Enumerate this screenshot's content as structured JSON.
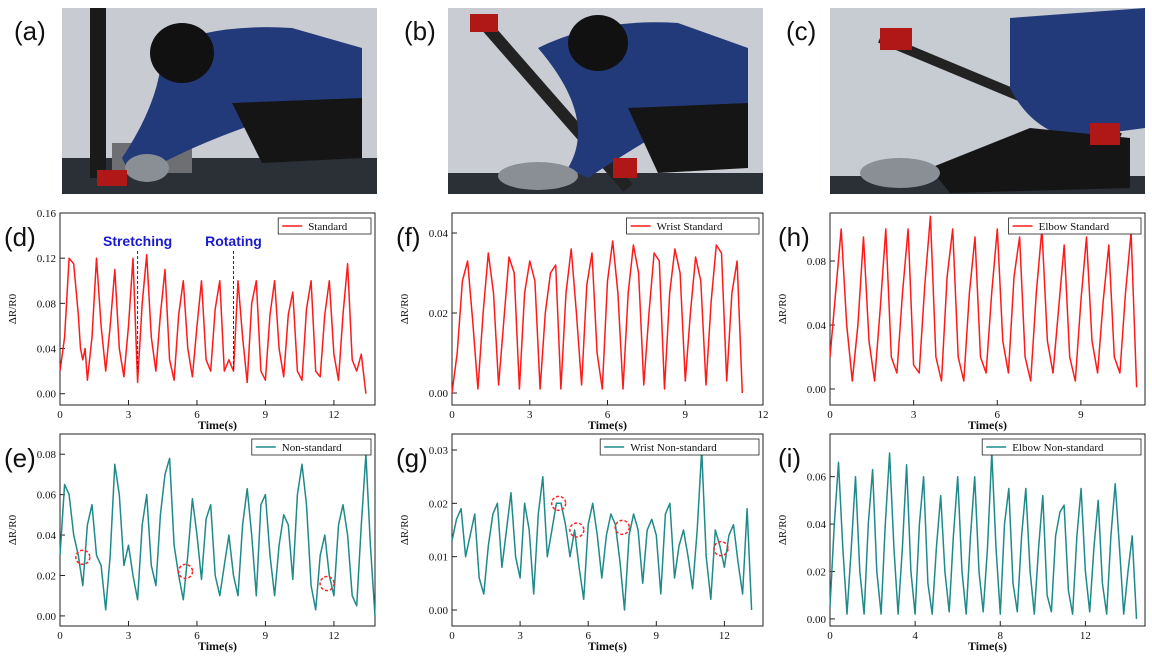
{
  "panel_labels": [
    "(a)",
    "(b)",
    "(c)",
    "(d)",
    "(e)",
    "(f)",
    "(g)",
    "(h)",
    "(i)"
  ],
  "colors": {
    "standard": "#ff1a1a",
    "nonstandard": "#1f8a8a",
    "annotation": "#1a1acc",
    "circle": "#ff2222"
  },
  "chart_data": [
    {
      "id": "d",
      "type": "line",
      "legend": "Standard",
      "color": "#ff1a1a",
      "xlabel": "Time(s)",
      "ylabel": "ΔR/R0",
      "xlim": [
        0,
        13.8
      ],
      "ylim": [
        -0.01,
        0.16
      ],
      "xticks": [
        "0",
        "3",
        "6",
        "9",
        "12"
      ],
      "xtick_values": [
        0,
        3,
        6,
        9,
        12
      ],
      "yticks": [
        "0.00",
        "0.04",
        "0.08",
        "0.12",
        "0.16"
      ],
      "ytick_values": [
        0,
        0.04,
        0.08,
        0.12,
        0.16
      ],
      "annotations": [
        {
          "text": "Stretching",
          "x": 3.4
        },
        {
          "text": "Rotating",
          "x": 7.6
        }
      ],
      "x": [
        0,
        0.2,
        0.4,
        0.6,
        0.8,
        0.9,
        1.0,
        1.1,
        1.2,
        1.4,
        1.6,
        1.8,
        2.0,
        2.2,
        2.4,
        2.6,
        2.8,
        3.0,
        3.2,
        3.4,
        3.6,
        3.8,
        4.0,
        4.2,
        4.4,
        4.6,
        4.8,
        5.0,
        5.2,
        5.4,
        5.6,
        5.8,
        6.0,
        6.2,
        6.4,
        6.6,
        6.8,
        7.0,
        7.2,
        7.4,
        7.6,
        7.8,
        8.0,
        8.2,
        8.4,
        8.6,
        8.8,
        9.0,
        9.2,
        9.4,
        9.6,
        9.8,
        10.0,
        10.2,
        10.4,
        10.6,
        10.8,
        11.0,
        11.2,
        11.4,
        11.6,
        11.8,
        12.0,
        12.2,
        12.4,
        12.6,
        12.8,
        13.0,
        13.2,
        13.4
      ],
      "y": [
        0.02,
        0.05,
        0.12,
        0.115,
        0.07,
        0.04,
        0.03,
        0.04,
        0.012,
        0.05,
        0.12,
        0.06,
        0.02,
        0.06,
        0.11,
        0.04,
        0.015,
        0.06,
        0.12,
        0.01,
        0.08,
        0.123,
        0.05,
        0.02,
        0.07,
        0.11,
        0.03,
        0.012,
        0.07,
        0.1,
        0.04,
        0.015,
        0.06,
        0.1,
        0.03,
        0.02,
        0.075,
        0.1,
        0.02,
        0.03,
        0.02,
        0.1,
        0.05,
        0.01,
        0.08,
        0.1,
        0.02,
        0.012,
        0.07,
        0.1,
        0.04,
        0.015,
        0.07,
        0.09,
        0.02,
        0.012,
        0.075,
        0.1,
        0.02,
        0.015,
        0.07,
        0.1,
        0.035,
        0.012,
        0.07,
        0.115,
        0.03,
        0.02,
        0.035,
        0.0
      ]
    },
    {
      "id": "e",
      "type": "line",
      "legend": "Non-standard",
      "color": "#1f8a8a",
      "xlabel": "Time(s)",
      "ylabel": "ΔR/R0",
      "xlim": [
        0,
        13.8
      ],
      "ylim": [
        -0.005,
        0.09
      ],
      "xticks": [
        "0",
        "3",
        "6",
        "9",
        "12"
      ],
      "xtick_values": [
        0,
        3,
        6,
        9,
        12
      ],
      "yticks": [
        "0.00",
        "0.02",
        "0.04",
        "0.06",
        "0.08"
      ],
      "ytick_values": [
        0,
        0.02,
        0.04,
        0.06,
        0.08
      ],
      "circles": [
        {
          "x": 1.0,
          "y": 0.029
        },
        {
          "x": 5.5,
          "y": 0.022
        },
        {
          "x": 11.7,
          "y": 0.016
        }
      ],
      "x": [
        0,
        0.2,
        0.4,
        0.6,
        0.8,
        1.0,
        1.2,
        1.4,
        1.6,
        1.8,
        2.0,
        2.2,
        2.4,
        2.6,
        2.8,
        3.0,
        3.2,
        3.4,
        3.6,
        3.8,
        4.0,
        4.2,
        4.4,
        4.6,
        4.8,
        5.0,
        5.2,
        5.4,
        5.6,
        5.8,
        6.0,
        6.2,
        6.4,
        6.6,
        6.8,
        7.0,
        7.2,
        7.4,
        7.6,
        7.8,
        8.0,
        8.2,
        8.4,
        8.6,
        8.8,
        9.0,
        9.2,
        9.4,
        9.6,
        9.8,
        10.0,
        10.2,
        10.4,
        10.6,
        10.8,
        11.0,
        11.2,
        11.4,
        11.6,
        11.8,
        12.0,
        12.2,
        12.4,
        12.6,
        12.8,
        13.0,
        13.2,
        13.4,
        13.6,
        13.8
      ],
      "y": [
        0.03,
        0.065,
        0.06,
        0.04,
        0.03,
        0.015,
        0.045,
        0.055,
        0.03,
        0.025,
        0.003,
        0.03,
        0.075,
        0.06,
        0.025,
        0.035,
        0.02,
        0.008,
        0.045,
        0.06,
        0.025,
        0.015,
        0.05,
        0.07,
        0.078,
        0.035,
        0.02,
        0.008,
        0.03,
        0.058,
        0.04,
        0.018,
        0.048,
        0.055,
        0.02,
        0.01,
        0.025,
        0.04,
        0.02,
        0.01,
        0.045,
        0.063,
        0.04,
        0.01,
        0.055,
        0.06,
        0.03,
        0.01,
        0.035,
        0.05,
        0.045,
        0.018,
        0.06,
        0.075,
        0.055,
        0.015,
        0.003,
        0.03,
        0.04,
        0.02,
        0.01,
        0.045,
        0.055,
        0.04,
        0.01,
        0.005,
        0.045,
        0.08,
        0.035,
        0.0
      ]
    },
    {
      "id": "f",
      "type": "line",
      "legend": "Wrist Standard",
      "color": "#ff1a1a",
      "xlabel": "Time(s)",
      "ylabel": "ΔR/R0",
      "xlim": [
        0,
        12
      ],
      "ylim": [
        -0.003,
        0.045
      ],
      "xticks": [
        "0",
        "3",
        "6",
        "9",
        "12"
      ],
      "xtick_values": [
        0,
        3,
        6,
        9,
        12
      ],
      "yticks": [
        "0.00",
        "0.02",
        "0.04"
      ],
      "ytick_values": [
        0,
        0.02,
        0.04
      ],
      "x": [
        0,
        0.2,
        0.4,
        0.6,
        0.8,
        1.0,
        1.2,
        1.4,
        1.6,
        1.8,
        2.0,
        2.2,
        2.4,
        2.6,
        2.8,
        3.0,
        3.2,
        3.4,
        3.6,
        3.8,
        4.0,
        4.2,
        4.4,
        4.6,
        4.8,
        5.0,
        5.2,
        5.4,
        5.6,
        5.8,
        6.0,
        6.2,
        6.4,
        6.6,
        6.8,
        7.0,
        7.2,
        7.4,
        7.6,
        7.8,
        8.0,
        8.2,
        8.4,
        8.6,
        8.8,
        9.0,
        9.2,
        9.4,
        9.6,
        9.8,
        10.0,
        10.2,
        10.4,
        10.6,
        10.8,
        11.0,
        11.2
      ],
      "y": [
        0.0,
        0.01,
        0.028,
        0.033,
        0.018,
        0.001,
        0.02,
        0.035,
        0.025,
        0.002,
        0.018,
        0.034,
        0.03,
        0.001,
        0.025,
        0.033,
        0.028,
        0.001,
        0.02,
        0.03,
        0.032,
        0.001,
        0.025,
        0.036,
        0.02,
        0.002,
        0.027,
        0.035,
        0.01,
        0.001,
        0.028,
        0.038,
        0.025,
        0.001,
        0.025,
        0.037,
        0.03,
        0.002,
        0.02,
        0.035,
        0.033,
        0.001,
        0.025,
        0.036,
        0.03,
        0.003,
        0.02,
        0.034,
        0.028,
        0.002,
        0.023,
        0.037,
        0.035,
        0.003,
        0.025,
        0.033,
        0.0
      ]
    },
    {
      "id": "g",
      "type": "line",
      "legend": "Wrist Non-standard",
      "color": "#1f8a8a",
      "xlabel": "Time(s)",
      "ylabel": "ΔR/R0",
      "xlim": [
        0,
        13.7
      ],
      "ylim": [
        -0.003,
        0.033
      ],
      "xticks": [
        "0",
        "3",
        "6",
        "9",
        "12"
      ],
      "xtick_values": [
        0,
        3,
        6,
        9,
        12
      ],
      "yticks": [
        "0.00",
        "0.01",
        "0.02",
        "0.03"
      ],
      "ytick_values": [
        0,
        0.01,
        0.02,
        0.03
      ],
      "circles": [
        {
          "x": 4.7,
          "y": 0.02
        },
        {
          "x": 5.5,
          "y": 0.015
        },
        {
          "x": 7.5,
          "y": 0.0155
        },
        {
          "x": 11.85,
          "y": 0.0115
        }
      ],
      "x": [
        0,
        0.2,
        0.4,
        0.6,
        0.8,
        1.0,
        1.2,
        1.4,
        1.6,
        1.8,
        2.0,
        2.2,
        2.4,
        2.6,
        2.8,
        3.0,
        3.2,
        3.4,
        3.6,
        3.8,
        4.0,
        4.2,
        4.4,
        4.6,
        4.8,
        5.0,
        5.2,
        5.4,
        5.6,
        5.8,
        6.0,
        6.2,
        6.4,
        6.6,
        6.8,
        7.0,
        7.2,
        7.4,
        7.6,
        7.8,
        8.0,
        8.2,
        8.4,
        8.6,
        8.8,
        9.0,
        9.2,
        9.4,
        9.6,
        9.8,
        10.0,
        10.2,
        10.4,
        10.6,
        10.8,
        11.0,
        11.2,
        11.4,
        11.6,
        11.8,
        12.0,
        12.2,
        12.4,
        12.6,
        12.8,
        13.0,
        13.2
      ],
      "y": [
        0.013,
        0.017,
        0.019,
        0.01,
        0.014,
        0.018,
        0.006,
        0.003,
        0.012,
        0.018,
        0.02,
        0.008,
        0.015,
        0.022,
        0.01,
        0.006,
        0.02,
        0.015,
        0.003,
        0.018,
        0.025,
        0.01,
        0.015,
        0.02,
        0.02,
        0.016,
        0.01,
        0.015,
        0.008,
        0.002,
        0.016,
        0.02,
        0.014,
        0.006,
        0.014,
        0.018,
        0.016,
        0.009,
        0.0,
        0.014,
        0.018,
        0.015,
        0.005,
        0.015,
        0.017,
        0.014,
        0.003,
        0.018,
        0.02,
        0.006,
        0.012,
        0.015,
        0.01,
        0.004,
        0.015,
        0.03,
        0.01,
        0.002,
        0.015,
        0.012,
        0.008,
        0.014,
        0.016,
        0.009,
        0.003,
        0.019,
        0.0
      ]
    },
    {
      "id": "h",
      "type": "line",
      "legend": "Elbow Standard",
      "color": "#ff1a1a",
      "xlabel": "Time(s)",
      "ylabel": "ΔR/R0",
      "xlim": [
        0,
        11.3
      ],
      "ylim": [
        -0.01,
        0.11
      ],
      "xticks": [
        "0",
        "3",
        "6",
        "9"
      ],
      "xtick_values": [
        0,
        3,
        6,
        9
      ],
      "yticks": [
        "0.00",
        "0.04",
        "0.08"
      ],
      "ytick_values": [
        0,
        0.04,
        0.08
      ],
      "x": [
        0,
        0.2,
        0.4,
        0.6,
        0.8,
        1.0,
        1.2,
        1.4,
        1.6,
        1.8,
        2.0,
        2.2,
        2.4,
        2.6,
        2.8,
        3.0,
        3.2,
        3.4,
        3.6,
        3.8,
        4.0,
        4.2,
        4.4,
        4.6,
        4.8,
        5.0,
        5.2,
        5.4,
        5.6,
        5.8,
        6.0,
        6.2,
        6.4,
        6.6,
        6.8,
        7.0,
        7.2,
        7.4,
        7.6,
        7.8,
        8.0,
        8.2,
        8.4,
        8.6,
        8.8,
        9.0,
        9.2,
        9.4,
        9.6,
        9.8,
        10.0,
        10.2,
        10.4,
        10.6,
        10.8,
        11.0
      ],
      "y": [
        0.02,
        0.06,
        0.1,
        0.04,
        0.005,
        0.04,
        0.095,
        0.03,
        0.005,
        0.05,
        0.1,
        0.02,
        0.01,
        0.06,
        0.1,
        0.015,
        0.01,
        0.065,
        0.108,
        0.02,
        0.005,
        0.07,
        0.1,
        0.02,
        0.005,
        0.06,
        0.095,
        0.02,
        0.01,
        0.06,
        0.1,
        0.03,
        0.01,
        0.07,
        0.095,
        0.02,
        0.005,
        0.06,
        0.1,
        0.03,
        0.01,
        0.05,
        0.09,
        0.02,
        0.005,
        0.055,
        0.095,
        0.03,
        0.01,
        0.055,
        0.09,
        0.02,
        0.01,
        0.06,
        0.098,
        0.001
      ]
    },
    {
      "id": "i",
      "type": "line",
      "legend": "Elbow Non-standard",
      "color": "#1f8a8a",
      "xlabel": "Time(s)",
      "ylabel": "ΔR/R0",
      "xlim": [
        0,
        14.8
      ],
      "ylim": [
        -0.003,
        0.078
      ],
      "xticks": [
        "0",
        "4",
        "8",
        "12"
      ],
      "xtick_values": [
        0,
        4,
        8,
        12
      ],
      "yticks": [
        "0.00",
        "0.02",
        "0.04",
        "0.06"
      ],
      "ytick_values": [
        0,
        0.02,
        0.04,
        0.06
      ],
      "x": [
        0,
        0.2,
        0.4,
        0.6,
        0.8,
        1.0,
        1.2,
        1.4,
        1.6,
        1.8,
        2.0,
        2.2,
        2.4,
        2.6,
        2.8,
        3.0,
        3.2,
        3.4,
        3.6,
        3.8,
        4.0,
        4.2,
        4.4,
        4.6,
        4.8,
        5.0,
        5.2,
        5.4,
        5.6,
        5.8,
        6.0,
        6.2,
        6.4,
        6.6,
        6.8,
        7.0,
        7.2,
        7.4,
        7.6,
        7.8,
        8.0,
        8.2,
        8.4,
        8.6,
        8.8,
        9.0,
        9.2,
        9.4,
        9.6,
        9.8,
        10.0,
        10.2,
        10.4,
        10.6,
        10.8,
        11.0,
        11.2,
        11.4,
        11.6,
        11.8,
        12.0,
        12.2,
        12.4,
        12.6,
        12.8,
        13.0,
        13.2,
        13.4,
        13.6,
        13.8,
        14.0,
        14.2,
        14.4
      ],
      "y": [
        0.005,
        0.04,
        0.066,
        0.03,
        0.002,
        0.03,
        0.06,
        0.02,
        0.002,
        0.04,
        0.063,
        0.02,
        0.002,
        0.04,
        0.07,
        0.03,
        0.002,
        0.03,
        0.065,
        0.02,
        0.002,
        0.04,
        0.06,
        0.015,
        0.002,
        0.03,
        0.052,
        0.02,
        0.003,
        0.035,
        0.06,
        0.02,
        0.002,
        0.035,
        0.06,
        0.02,
        0.003,
        0.03,
        0.07,
        0.03,
        0.002,
        0.04,
        0.055,
        0.015,
        0.003,
        0.035,
        0.055,
        0.02,
        0.002,
        0.03,
        0.052,
        0.01,
        0.003,
        0.035,
        0.045,
        0.048,
        0.012,
        0.002,
        0.035,
        0.055,
        0.02,
        0.003,
        0.03,
        0.05,
        0.015,
        0.002,
        0.035,
        0.057,
        0.03,
        0.002,
        0.02,
        0.035,
        0.0
      ]
    }
  ]
}
